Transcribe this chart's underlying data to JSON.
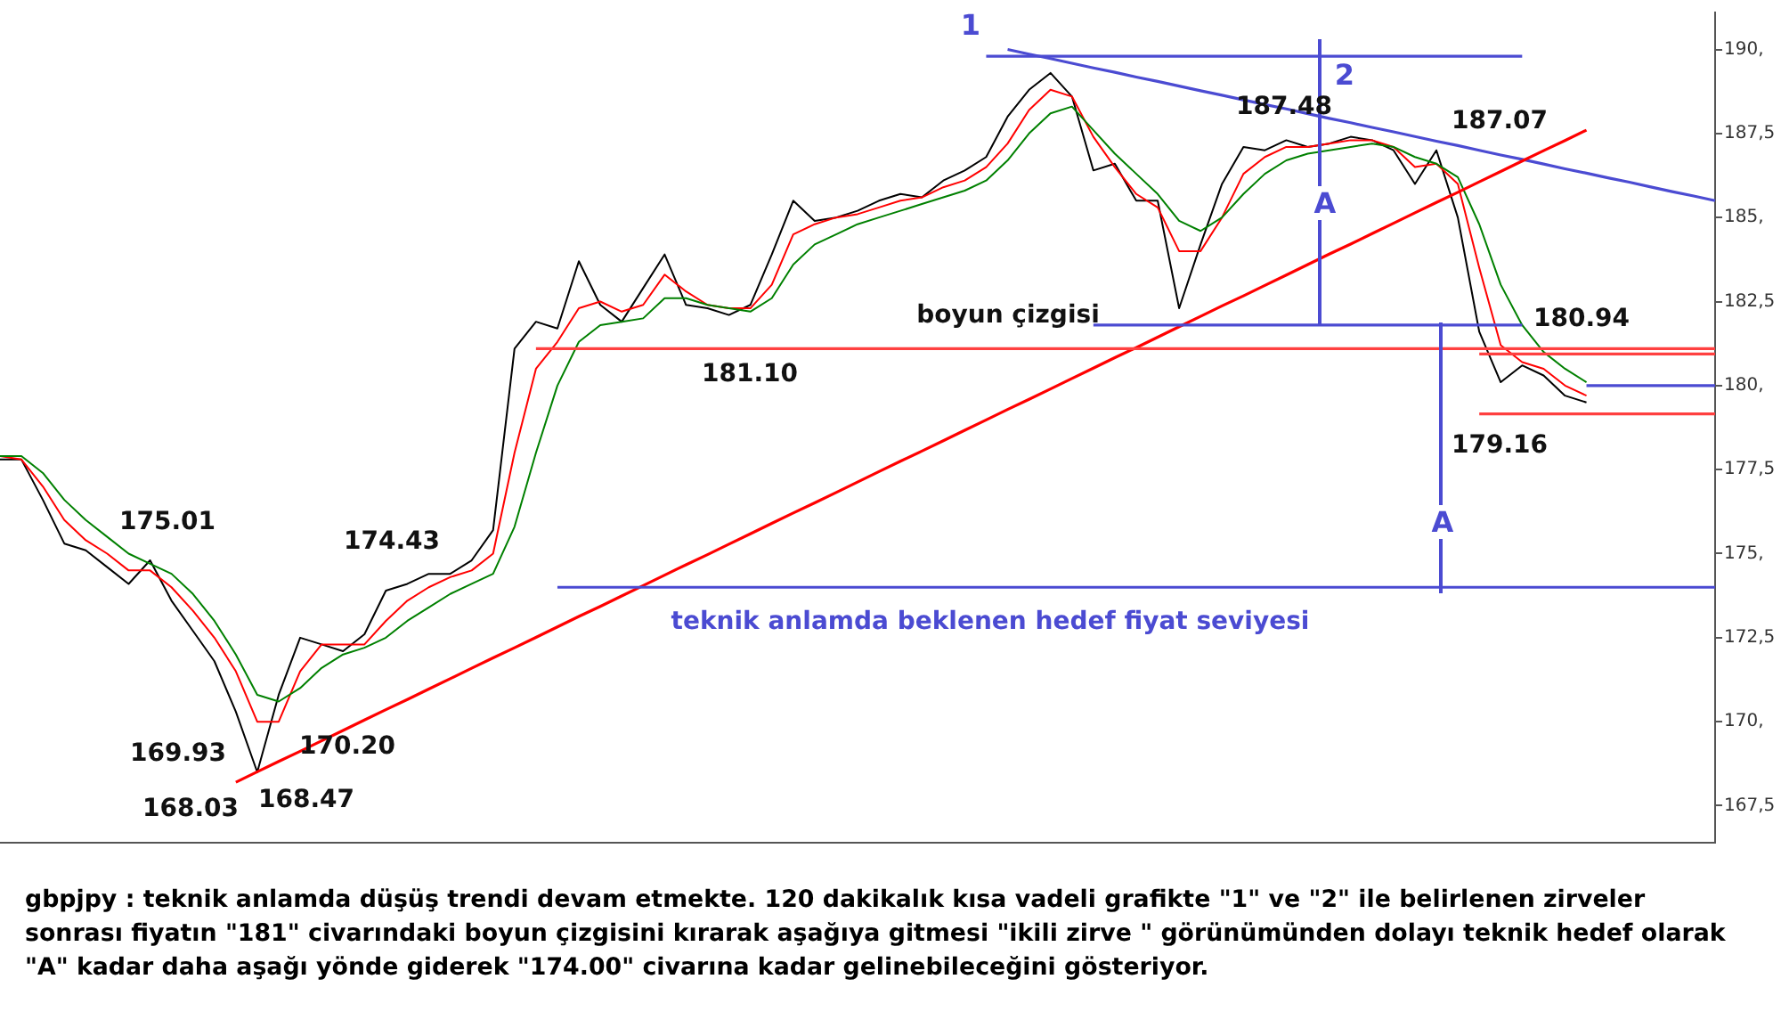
{
  "chart_data": {
    "type": "line",
    "categories": [
      null,
      null,
      null,
      null,
      null,
      null,
      null,
      null,
      null,
      null,
      null,
      null,
      null,
      null,
      null,
      null,
      null,
      null,
      null,
      null,
      null,
      null,
      null,
      null,
      null,
      null,
      null,
      null,
      null,
      null,
      null,
      null,
      null,
      null,
      null,
      null,
      null,
      null,
      null,
      null,
      null,
      null,
      null,
      null,
      null,
      null,
      null,
      null,
      null,
      null,
      null,
      null,
      null,
      null,
      null,
      null,
      null,
      null,
      null,
      null,
      null,
      null,
      null,
      null,
      null,
      null,
      null,
      null,
      null,
      null,
      null,
      null,
      null,
      null,
      null,
      null,
      null,
      null,
      null,
      null,
      null
    ],
    "ylim": [
      166.4,
      191.1
    ],
    "yticks": [
      {
        "value": 167.5,
        "label": "167,5"
      },
      {
        "value": 170,
        "label": "170,"
      },
      {
        "value": 172.5,
        "label": "172,5"
      },
      {
        "value": 175,
        "label": "175,"
      },
      {
        "value": 177.5,
        "label": "177,5"
      },
      {
        "value": 180,
        "label": "180,"
      },
      {
        "value": 182.5,
        "label": "182,5"
      },
      {
        "value": 185,
        "label": "185,"
      },
      {
        "value": 187.5,
        "label": "187,5"
      },
      {
        "value": 190,
        "label": "190,"
      }
    ],
    "tick_labels": "y",
    "grid": false,
    "legend": false,
    "marker": "none",
    "line_style": "solid",
    "series": [
      {
        "color": "#000000",
        "values": [
          177.8,
          177.8,
          176.6,
          175.3,
          175.1,
          174.6,
          174.1,
          174.8,
          173.6,
          172.7,
          171.8,
          170.3,
          168.5,
          170.8,
          172.5,
          172.3,
          172.1,
          172.6,
          173.9,
          174.1,
          174.4,
          174.4,
          174.8,
          175.7,
          181.1,
          181.9,
          181.7,
          183.7,
          182.4,
          181.9,
          182.9,
          183.9,
          182.4,
          182.3,
          182.1,
          182.4,
          183.9,
          185.5,
          184.9,
          185.0,
          185.2,
          185.5,
          185.7,
          185.6,
          186.1,
          186.4,
          186.8,
          188.0,
          188.8,
          189.3,
          188.6,
          186.4,
          186.6,
          185.5,
          185.5,
          182.3,
          184.2,
          186.0,
          187.1,
          187.0,
          187.3,
          187.1,
          187.2,
          187.4,
          187.3,
          187.0,
          186.0,
          187.0,
          185.0,
          181.6,
          180.1,
          180.6,
          180.3,
          179.7,
          179.5,
          null,
          null,
          null,
          null,
          null,
          null
        ]
      },
      {
        "color": "#ff0000",
        "values": [
          177.9,
          177.8,
          177.0,
          176.0,
          175.4,
          175.0,
          174.5,
          174.5,
          174.0,
          173.3,
          172.5,
          171.5,
          170.0,
          170.0,
          171.5,
          172.3,
          172.3,
          172.3,
          173.0,
          173.6,
          174.0,
          174.3,
          174.5,
          175.0,
          178.0,
          180.5,
          181.3,
          182.3,
          182.5,
          182.2,
          182.4,
          183.3,
          182.8,
          182.4,
          182.3,
          182.3,
          183.0,
          184.5,
          184.8,
          185.0,
          185.1,
          185.3,
          185.5,
          185.6,
          185.9,
          186.1,
          186.5,
          187.2,
          188.2,
          188.8,
          188.6,
          187.4,
          186.5,
          185.7,
          185.3,
          184.0,
          184.0,
          185.0,
          186.3,
          186.8,
          187.1,
          187.1,
          187.2,
          187.3,
          187.3,
          187.1,
          186.5,
          186.6,
          186.0,
          183.5,
          181.2,
          180.7,
          180.5,
          180.0,
          179.7,
          null,
          null,
          null,
          null,
          null,
          null
        ]
      },
      {
        "color": "#008000",
        "values": [
          177.9,
          177.9,
          177.4,
          176.6,
          176.0,
          175.5,
          175.0,
          174.7,
          174.4,
          173.8,
          173.0,
          172.0,
          170.8,
          170.6,
          171.0,
          171.6,
          172.0,
          172.2,
          172.5,
          173.0,
          173.4,
          173.8,
          174.1,
          174.4,
          175.8,
          178.0,
          180.0,
          181.3,
          181.8,
          181.9,
          182.0,
          182.6,
          182.6,
          182.4,
          182.3,
          182.2,
          182.6,
          183.6,
          184.2,
          184.5,
          184.8,
          185.0,
          185.2,
          185.4,
          185.6,
          185.8,
          186.1,
          186.7,
          187.5,
          188.1,
          188.3,
          187.6,
          186.9,
          186.3,
          185.7,
          184.9,
          184.6,
          185.0,
          185.7,
          186.3,
          186.7,
          186.9,
          187.0,
          187.1,
          187.2,
          187.1,
          186.8,
          186.6,
          186.2,
          184.8,
          183.0,
          181.8,
          181.0,
          180.5,
          180.1,
          null,
          null,
          null,
          null,
          null,
          null
        ]
      },
      {
        "color": "#4b4bd2",
        "values": [
          null,
          null,
          null,
          null,
          null,
          null,
          null,
          null,
          null,
          null,
          null,
          null,
          null,
          null,
          null,
          null,
          null,
          null,
          null,
          null,
          null,
          null,
          null,
          null,
          null,
          null,
          null,
          null,
          null,
          null,
          null,
          null,
          null,
          null,
          null,
          null,
          null,
          null,
          null,
          null,
          null,
          null,
          null,
          null,
          null,
          null,
          null,
          190.0,
          189.86,
          189.73,
          189.59,
          189.45,
          189.32,
          189.18,
          189.05,
          188.91,
          188.77,
          188.64,
          188.5,
          188.36,
          188.23,
          188.09,
          187.95,
          187.82,
          187.68,
          187.55,
          187.41,
          187.27,
          187.14,
          187.0,
          186.86,
          186.73,
          186.59,
          186.45,
          186.32,
          186.18,
          186.05,
          185.91,
          185.77,
          185.64,
          185.5
        ]
      },
      {
        "color": "#ff0000",
        "values": [
          null,
          null,
          null,
          null,
          null,
          null,
          null,
          null,
          null,
          null,
          null,
          168.2,
          168.51,
          168.82,
          169.12,
          169.43,
          169.74,
          170.05,
          170.36,
          170.66,
          170.97,
          171.28,
          171.59,
          171.9,
          172.2,
          172.51,
          172.82,
          173.13,
          173.43,
          173.74,
          174.05,
          174.36,
          174.67,
          174.97,
          175.28,
          175.59,
          175.9,
          176.21,
          176.51,
          176.82,
          177.13,
          177.44,
          177.75,
          178.05,
          178.36,
          178.67,
          178.98,
          179.29,
          179.59,
          179.9,
          180.21,
          180.52,
          180.83,
          181.13,
          181.44,
          181.75,
          182.06,
          182.37,
          182.67,
          182.98,
          183.29,
          183.6,
          183.91,
          184.21,
          184.52,
          184.83,
          185.14,
          185.45,
          185.75,
          186.06,
          186.37,
          186.68,
          186.99,
          187.29,
          187.6,
          null,
          null,
          null,
          null,
          null,
          null
        ]
      },
      {
        "color": "#4b4bd2",
        "values": [
          null,
          null,
          null,
          null,
          null,
          null,
          null,
          null,
          null,
          null,
          null,
          null,
          null,
          null,
          null,
          null,
          null,
          null,
          null,
          null,
          null,
          null,
          null,
          null,
          null,
          null,
          null,
          null,
          null,
          null,
          null,
          null,
          null,
          null,
          null,
          null,
          null,
          null,
          null,
          null,
          null,
          null,
          null,
          null,
          null,
          null,
          189.8,
          189.8,
          189.8,
          189.8,
          189.8,
          189.8,
          189.8,
          189.8,
          189.8,
          189.8,
          189.8,
          189.8,
          189.8,
          189.8,
          189.8,
          189.8,
          189.8,
          189.8,
          189.8,
          189.8,
          189.8,
          189.8,
          189.8,
          189.8,
          189.8,
          189.8,
          null,
          null,
          null,
          null,
          null,
          null,
          null,
          null,
          null
        ]
      },
      {
        "color": "#4b4bd2",
        "values": [
          null,
          null,
          null,
          null,
          null,
          null,
          null,
          null,
          null,
          null,
          null,
          null,
          null,
          null,
          null,
          null,
          null,
          null,
          null,
          null,
          null,
          null,
          null,
          null,
          null,
          null,
          null,
          null,
          null,
          null,
          null,
          null,
          null,
          null,
          null,
          null,
          null,
          null,
          null,
          null,
          null,
          null,
          null,
          null,
          null,
          null,
          null,
          null,
          null,
          null,
          null,
          181.8,
          181.8,
          181.8,
          181.8,
          181.8,
          181.8,
          181.8,
          181.8,
          181.8,
          181.8,
          181.8,
          181.8,
          181.8,
          181.8,
          181.8,
          181.8,
          181.8,
          181.8,
          181.8,
          181.8,
          181.8,
          null,
          null,
          null,
          null,
          null,
          null,
          null,
          null,
          null
        ]
      },
      {
        "color": "#ff4040",
        "values": [
          null,
          null,
          null,
          null,
          null,
          null,
          null,
          null,
          null,
          null,
          null,
          null,
          null,
          null,
          null,
          null,
          null,
          null,
          null,
          null,
          null,
          null,
          null,
          null,
          null,
          181.1,
          181.1,
          181.1,
          181.1,
          181.1,
          181.1,
          181.1,
          181.1,
          181.1,
          181.1,
          181.1,
          181.1,
          181.1,
          181.1,
          181.1,
          181.1,
          181.1,
          181.1,
          181.1,
          181.1,
          181.1,
          181.1,
          181.1,
          181.1,
          181.1,
          181.1,
          181.1,
          181.1,
          181.1,
          181.1,
          181.1,
          181.1,
          181.1,
          181.1,
          181.1,
          181.1,
          181.1,
          181.1,
          181.1,
          181.1,
          181.1,
          181.1,
          181.1,
          181.1,
          181.1,
          181.1,
          181.1,
          181.1,
          181.1,
          181.1,
          181.1,
          181.1,
          181.1,
          181.1,
          181.1,
          181.1
        ]
      },
      {
        "color": "#ff4040",
        "values": [
          null,
          null,
          null,
          null,
          null,
          null,
          null,
          null,
          null,
          null,
          null,
          null,
          null,
          null,
          null,
          null,
          null,
          null,
          null,
          null,
          null,
          null,
          null,
          null,
          null,
          null,
          null,
          null,
          null,
          null,
          null,
          null,
          null,
          null,
          null,
          null,
          null,
          null,
          null,
          null,
          null,
          null,
          null,
          null,
          null,
          null,
          null,
          null,
          null,
          null,
          null,
          null,
          null,
          null,
          null,
          null,
          null,
          null,
          null,
          null,
          null,
          null,
          null,
          null,
          null,
          null,
          null,
          null,
          null,
          180.94,
          180.94,
          180.94,
          180.94,
          180.94,
          180.94,
          180.94,
          180.94,
          180.94,
          180.94,
          180.94,
          180.94
        ]
      },
      {
        "color": "#ff4040",
        "values": [
          null,
          null,
          null,
          null,
          null,
          null,
          null,
          null,
          null,
          null,
          null,
          null,
          null,
          null,
          null,
          null,
          null,
          null,
          null,
          null,
          null,
          null,
          null,
          null,
          null,
          null,
          null,
          null,
          null,
          null,
          null,
          null,
          null,
          null,
          null,
          null,
          null,
          null,
          null,
          null,
          null,
          null,
          null,
          null,
          null,
          null,
          null,
          null,
          null,
          null,
          null,
          null,
          null,
          null,
          null,
          null,
          null,
          null,
          null,
          null,
          null,
          null,
          null,
          null,
          null,
          null,
          null,
          null,
          null,
          179.16,
          179.16,
          179.16,
          179.16,
          179.16,
          179.16,
          179.16,
          179.16,
          179.16,
          179.16,
          179.16,
          179.16
        ]
      },
      {
        "color": "#4b4bd2",
        "values": [
          null,
          null,
          null,
          null,
          null,
          null,
          null,
          null,
          null,
          null,
          null,
          null,
          null,
          null,
          null,
          null,
          null,
          null,
          null,
          null,
          null,
          null,
          null,
          null,
          null,
          null,
          null,
          null,
          null,
          null,
          null,
          null,
          null,
          null,
          null,
          null,
          null,
          null,
          null,
          null,
          null,
          null,
          null,
          null,
          null,
          null,
          null,
          null,
          null,
          null,
          null,
          null,
          null,
          null,
          null,
          null,
          null,
          null,
          null,
          null,
          null,
          null,
          null,
          null,
          null,
          null,
          null,
          null,
          null,
          null,
          null,
          null,
          null,
          null,
          180.0,
          180.0,
          180.0,
          180.0,
          180.0,
          180.0,
          180.0
        ]
      },
      {
        "color": "#4b4bd2",
        "values": [
          null,
          null,
          null,
          null,
          null,
          null,
          null,
          null,
          null,
          null,
          null,
          null,
          null,
          null,
          null,
          null,
          null,
          null,
          null,
          null,
          null,
          null,
          null,
          null,
          null,
          null,
          174.0,
          174.0,
          174.0,
          174.0,
          174.0,
          174.0,
          174.0,
          174.0,
          174.0,
          174.0,
          174.0,
          174.0,
          174.0,
          174.0,
          174.0,
          174.0,
          174.0,
          174.0,
          174.0,
          174.0,
          174.0,
          174.0,
          174.0,
          174.0,
          174.0,
          174.0,
          174.0,
          174.0,
          174.0,
          174.0,
          174.0,
          174.0,
          174.0,
          174.0,
          174.0,
          174.0,
          174.0,
          174.0,
          174.0,
          174.0,
          174.0,
          174.0,
          174.0,
          174.0,
          174.0,
          174.0,
          174.0,
          174.0,
          174.0,
          174.0,
          174.0,
          174.0,
          174.0,
          174.0,
          174.0
        ]
      }
    ],
    "annotations": [
      "1",
      "2",
      "A",
      "A",
      "187.48",
      "187.07",
      "180.94",
      "179.16",
      "boyun çizgisi",
      "181.10",
      "175.01",
      "174.43",
      "169.93",
      "170.20",
      "168.03",
      "168.47",
      "teknik anlamda beklenen hedef fiyat seviyesi",
      "gbpjpy : teknik anlamda düşüş trendi devam etmekte. 120 dakikalık kısa vadeli grafikte \"1\" ve \"2\" ile belirlenen zirveler sonrası fiyatın \"181\" civarındaki boyun çizgisini kırarak aşağıya gitmesi \"ikili zirve \" görünümünden dolayı teknik hedef olarak \"A\" kadar daha aşağı yönde giderek \"174.00\" civarına kadar gelinebileceğini gösteriyor."
    ]
  }
}
